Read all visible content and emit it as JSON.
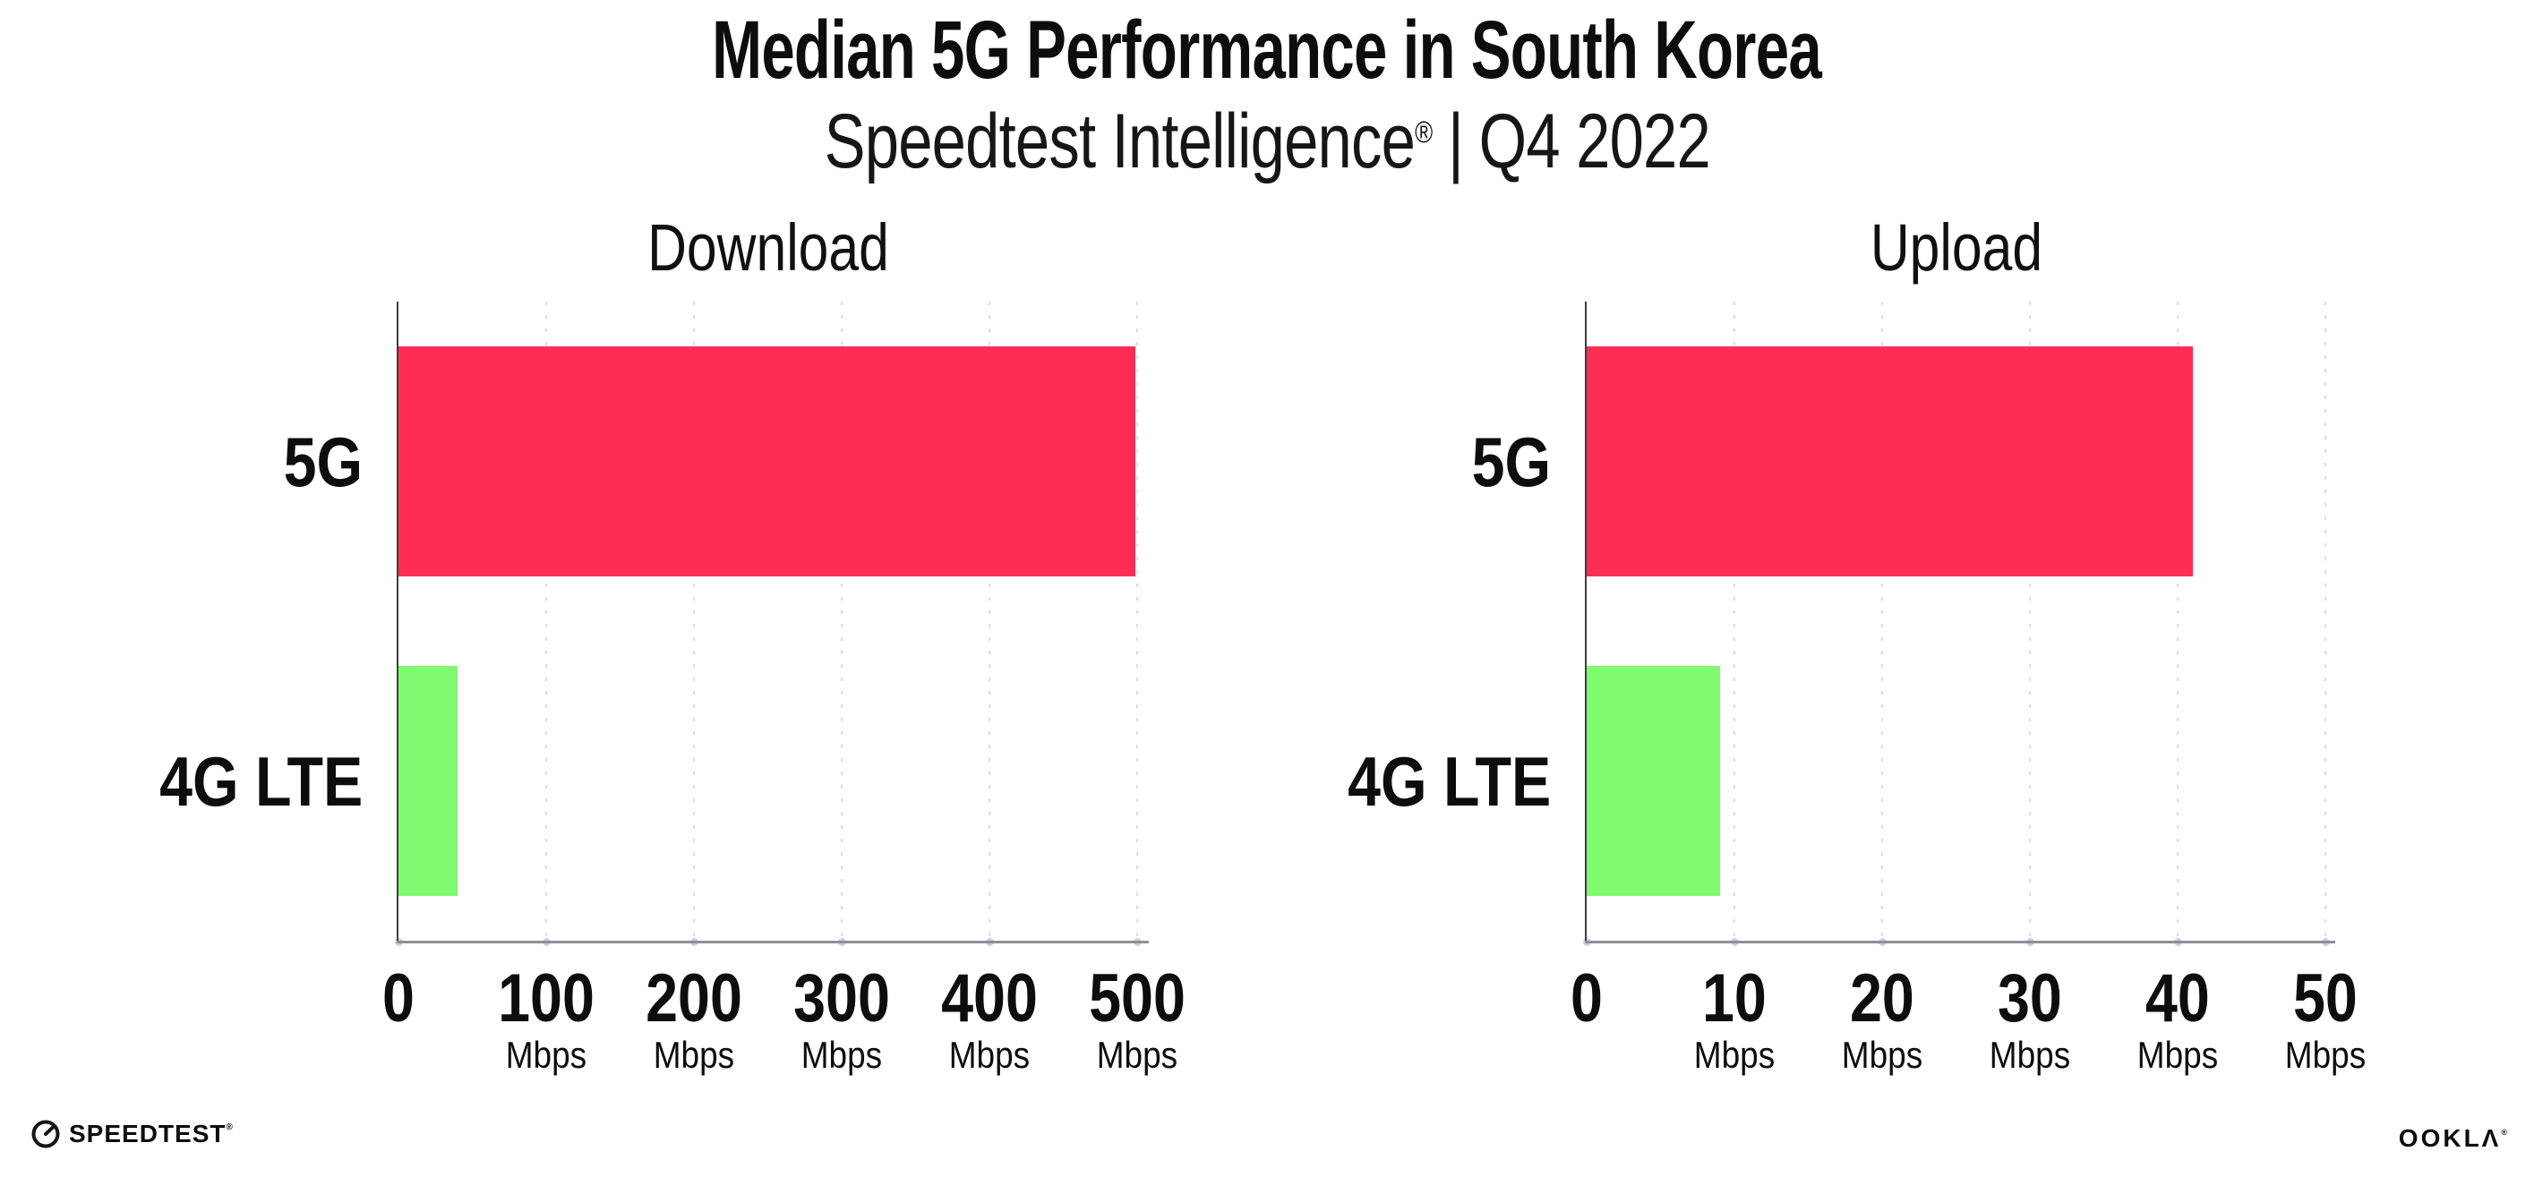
{
  "header": {
    "title": "Median 5G Performance in South Korea",
    "subtitle_brand": "Speedtest Intelligence",
    "subtitle_reg": "®",
    "subtitle_sep": "|",
    "subtitle_period": "Q4 2022"
  },
  "colors": {
    "bar_5g": "#FF2D55",
    "bar_4g_lte": "#80FA6E",
    "gridline": "#DCDCE6",
    "x_axis_line": "#8F8F98",
    "y_axis_line": "#3C3C44",
    "tick_dot": "#CFCFDC",
    "text": "#0D0D0D"
  },
  "chart_data": [
    {
      "id": "download",
      "type": "bar",
      "orientation": "horizontal",
      "title": "Download",
      "categories": [
        "5G",
        "4G LTE"
      ],
      "values": [
        499,
        40
      ],
      "unit": "Mbps",
      "xlabel": "",
      "ylabel": "",
      "xlim": [
        0,
        500
      ],
      "xticks": [
        0,
        100,
        200,
        300,
        400,
        500
      ],
      "grid": "vertical-dotted",
      "legend": "none",
      "bar_colors": [
        "#FF2D55",
        "#80FA6E"
      ]
    },
    {
      "id": "upload",
      "type": "bar",
      "orientation": "horizontal",
      "title": "Upload",
      "categories": [
        "5G",
        "4G LTE"
      ],
      "values": [
        41,
        9
      ],
      "unit": "Mbps",
      "xlabel": "",
      "ylabel": "",
      "xlim": [
        0,
        50
      ],
      "xticks": [
        0,
        10,
        20,
        30,
        40,
        50
      ],
      "grid": "vertical-dotted",
      "legend": "none",
      "bar_colors": [
        "#FF2D55",
        "#80FA6E"
      ]
    }
  ],
  "footer": {
    "speedtest_label": "SPEEDTEST",
    "speedtest_reg": "®",
    "ookla_label": "OOKLΛ",
    "ookla_reg": "®"
  }
}
